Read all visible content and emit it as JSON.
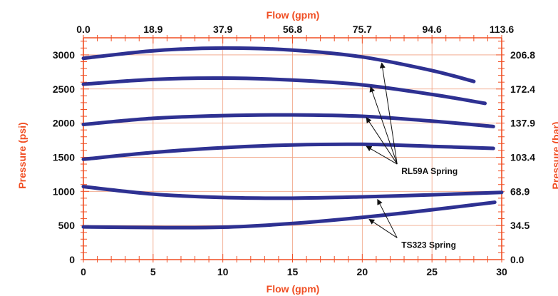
{
  "chart_data": {
    "type": "line",
    "title": "",
    "xlabel": "Flow (gpm)",
    "ylabel": "Pressure (psi)",
    "x2label": "Flow (gpm)",
    "y2label": "Pressure (bar)",
    "xlim": [
      0,
      30
    ],
    "ylim": [
      0,
      3250
    ],
    "x_ticks": [
      "0",
      "5",
      "10",
      "15",
      "20",
      "25",
      "30"
    ],
    "y_ticks": [
      "0",
      "500",
      "1000",
      "1500",
      "2000",
      "2500",
      "3000"
    ],
    "x2_ticks": [
      "0.0",
      "18.9",
      "37.9",
      "56.8",
      "75.7",
      "94.6",
      "113.6"
    ],
    "y2_ticks": [
      "0.0",
      "34.5",
      "68.9",
      "103.4",
      "137.9",
      "172.4",
      "206.8"
    ],
    "grid": true,
    "series": [
      {
        "x": [
          0,
          5,
          10,
          15,
          20,
          25,
          28
        ],
        "values": [
          2950,
          3060,
          3100,
          3070,
          2970,
          2770,
          2610
        ]
      },
      {
        "x": [
          0,
          5,
          10,
          15,
          20,
          25,
          28.8
        ],
        "values": [
          2570,
          2640,
          2660,
          2630,
          2560,
          2420,
          2290
        ]
      },
      {
        "x": [
          0,
          5,
          10,
          15,
          20,
          25,
          29.4
        ],
        "values": [
          1980,
          2070,
          2110,
          2120,
          2100,
          2030,
          1950
        ]
      },
      {
        "x": [
          0,
          5,
          10,
          15,
          20,
          25,
          29.4
        ],
        "values": [
          1470,
          1570,
          1640,
          1680,
          1690,
          1660,
          1630
        ]
      },
      {
        "x": [
          0,
          5,
          10,
          15,
          20,
          25,
          30
        ],
        "values": [
          1070,
          960,
          910,
          900,
          920,
          950,
          985
        ]
      },
      {
        "x": [
          0,
          5,
          10,
          15,
          20,
          25,
          29.5
        ],
        "values": [
          480,
          470,
          475,
          530,
          620,
          730,
          840
        ]
      }
    ],
    "annotations": [
      {
        "text": "RL59A Spring",
        "label_x": 22.5,
        "label_y": 1295,
        "targets": [
          [
            21.4,
            2880
          ],
          [
            20.6,
            2530
          ],
          [
            20.3,
            2080
          ],
          [
            20.3,
            1660
          ]
        ]
      },
      {
        "text": "TS323 Spring",
        "label_x": 22.5,
        "label_y": 215,
        "targets": [
          [
            21.1,
            880
          ],
          [
            20.5,
            590
          ]
        ]
      }
    ],
    "colors": {
      "series": "#2e3192",
      "axis_title": "#f04e23",
      "axes": "#f04e23",
      "grid": "#f0a080",
      "ticks": "#111111"
    }
  }
}
